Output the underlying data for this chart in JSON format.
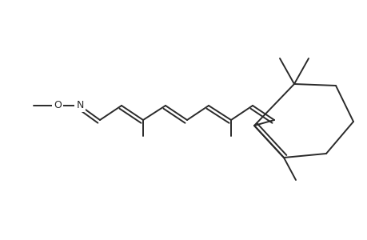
{
  "background": "#ffffff",
  "line_color": "#2a2a2a",
  "line_width": 1.4,
  "figsize": [
    4.6,
    3.0
  ],
  "dpi": 100
}
